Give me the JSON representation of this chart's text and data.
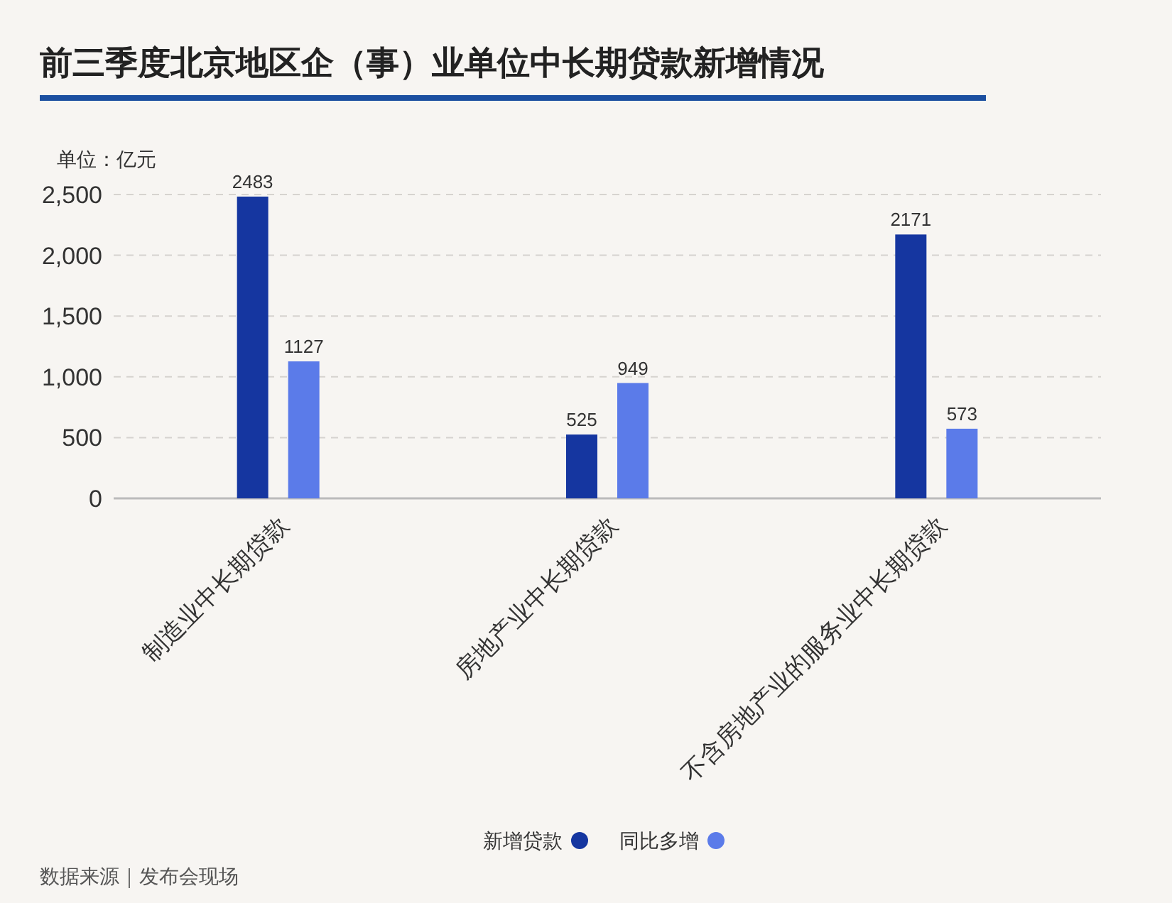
{
  "chart_data": {
    "type": "bar",
    "title": "前三季度北京地区企（事）业单位中长期贷款新增情况",
    "ylabel": "单位：亿元",
    "categories": [
      "制造业中长期贷款",
      "房地产业中长期贷款",
      "不含房地产业的服务业中长期贷款"
    ],
    "series": [
      {
        "name": "新增贷款",
        "color": "#1536a0",
        "values": [
          2483,
          525,
          2171
        ]
      },
      {
        "name": "同比多增",
        "color": "#5b7be9",
        "values": [
          1127,
          949,
          573
        ]
      }
    ],
    "ylim": [
      0,
      2500
    ],
    "yticks": [
      0,
      500,
      {
        "value": 1000,
        "label": "1,000"
      },
      {
        "value": 1500,
        "label": "1,500"
      },
      {
        "value": 2000,
        "label": "2,000"
      },
      {
        "value": 2500,
        "label": "2,500"
      }
    ],
    "grid": "y",
    "legend": "bottom",
    "data_labels": true,
    "annotations": [
      "数据来源｜发布会现场"
    ]
  }
}
